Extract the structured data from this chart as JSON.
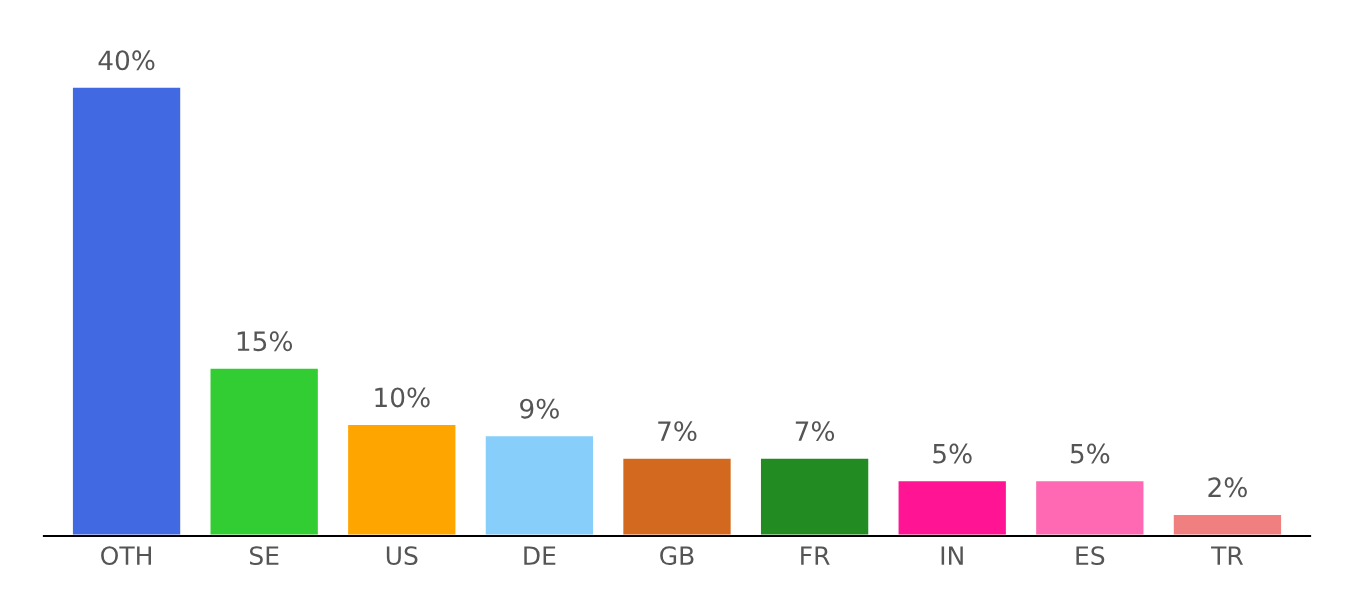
{
  "chart_data": {
    "type": "bar",
    "categories": [
      "OTH",
      "SE",
      "US",
      "DE",
      "GB",
      "FR",
      "IN",
      "ES",
      "TR"
    ],
    "values": [
      40,
      15,
      10,
      9,
      7,
      7,
      5,
      5,
      2
    ],
    "value_labels": [
      "40%",
      "15%",
      "10%",
      "9%",
      "7%",
      "7%",
      "5%",
      "5%",
      "2%"
    ],
    "colors": [
      "#4169e1",
      "#32cd32",
      "#ffa500",
      "#87cefa",
      "#d2691e",
      "#228b22",
      "#ff1493",
      "#ff69b4",
      "#f08080"
    ],
    "grid": false,
    "legend": false
  }
}
